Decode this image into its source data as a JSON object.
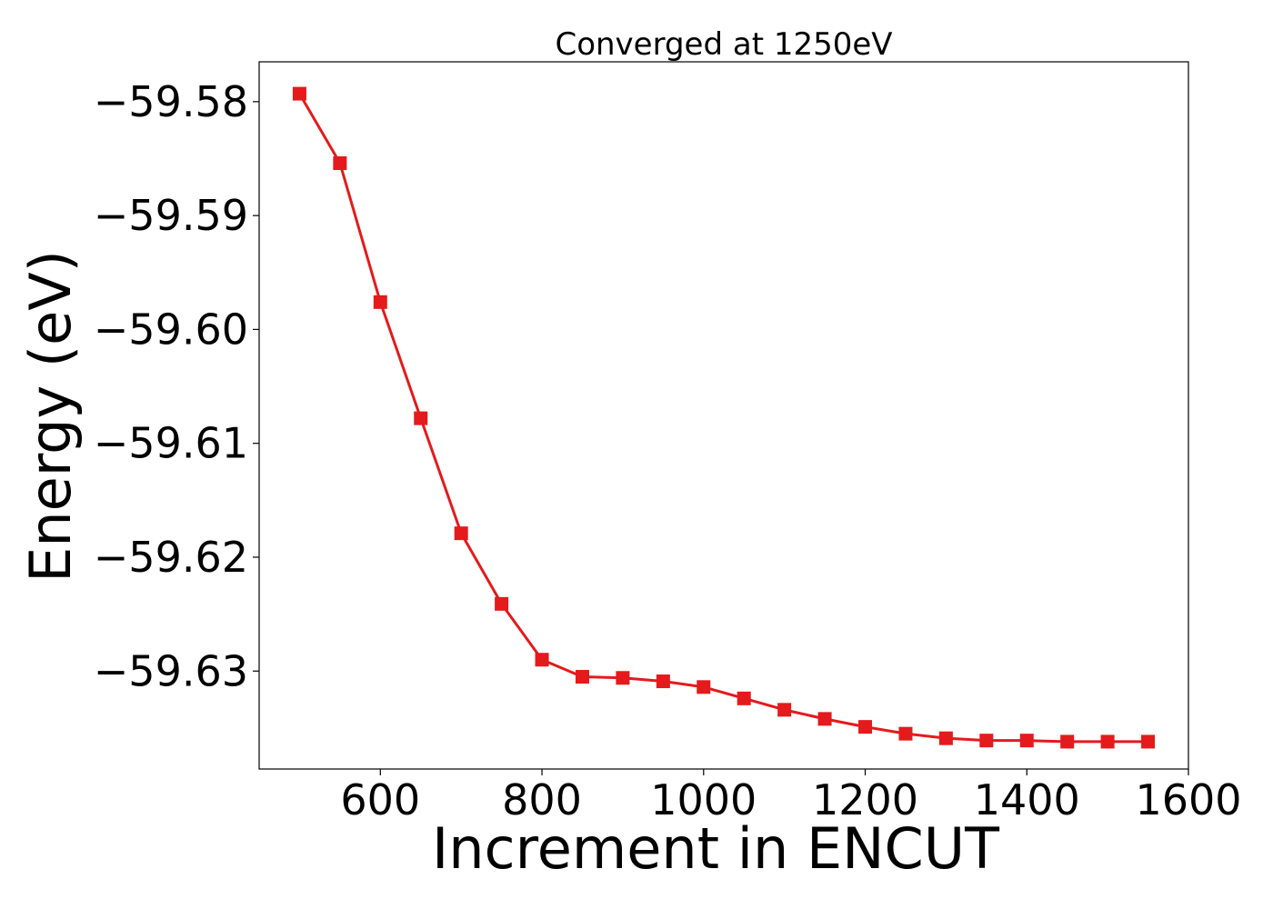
{
  "chart_data": {
    "type": "line",
    "title": "Converged at 1250eV",
    "xlabel": "Increment in ENCUT",
    "ylabel": "Energy (eV)",
    "xlim": [
      450,
      1600
    ],
    "ylim": [
      -59.6386,
      -59.5765
    ],
    "x_ticks": [
      600,
      800,
      1000,
      1200,
      1400,
      1600
    ],
    "x_tick_labels": [
      "600",
      "800",
      "1000",
      "1200",
      "1400",
      "1600"
    ],
    "y_ticks": [
      -59.58,
      -59.59,
      -59.6,
      -59.61,
      -59.62,
      -59.63
    ],
    "y_tick_labels": [
      "−59.58",
      "−59.59",
      "−59.60",
      "−59.61",
      "−59.62",
      "−59.63"
    ],
    "grid": false,
    "series": [
      {
        "color": "#e41a1c",
        "marker": "square",
        "x": [
          500,
          550,
          600,
          650,
          700,
          750,
          800,
          850,
          900,
          950,
          1000,
          1050,
          1100,
          1150,
          1200,
          1250,
          1300,
          1350,
          1400,
          1450,
          1500,
          1550
        ],
        "y": [
          -59.5793,
          -59.5854,
          -59.5976,
          -59.6078,
          -59.6179,
          -59.6241,
          -59.629,
          -59.6305,
          -59.6306,
          -59.6309,
          -59.6314,
          -59.6324,
          -59.6334,
          -59.6342,
          -59.6349,
          -59.6355,
          -59.6359,
          -59.6361,
          -59.6361,
          -59.6362,
          -59.6362,
          -59.6362
        ]
      }
    ]
  }
}
